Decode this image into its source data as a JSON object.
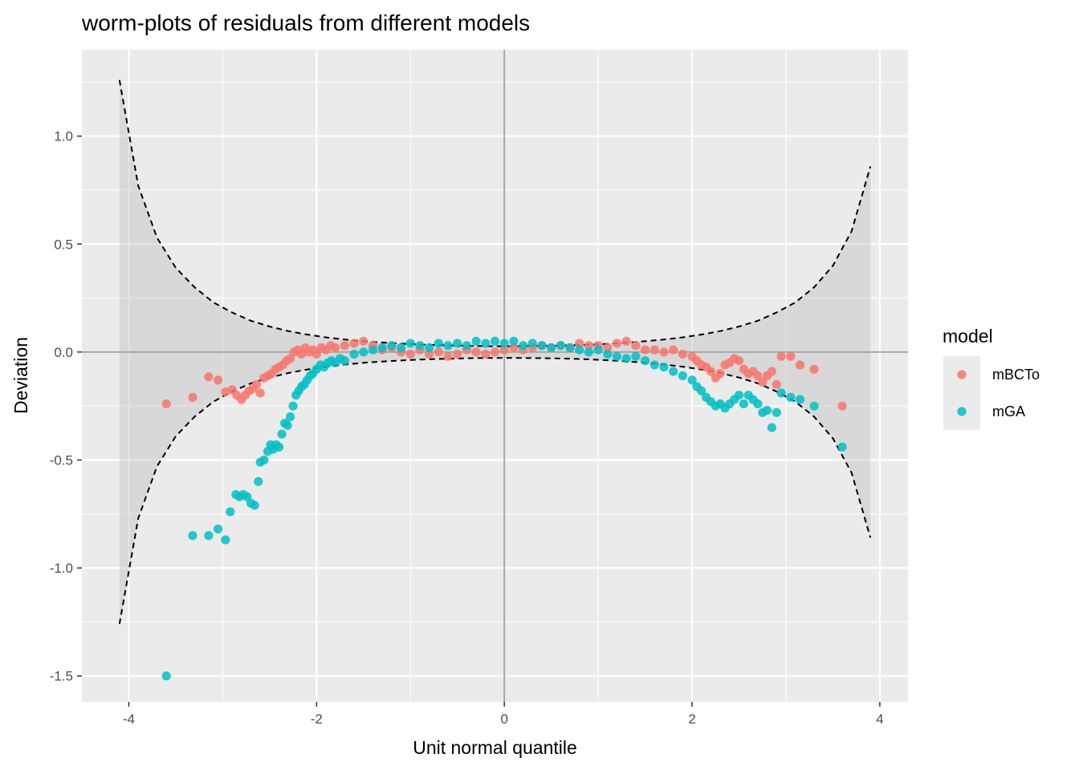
{
  "chart_data": {
    "type": "scatter",
    "title": "worm-plots of residuals from different models",
    "xlabel": "Unit normal quantile",
    "ylabel": "Deviation",
    "xlim": [
      -4.5,
      4.3
    ],
    "ylim": [
      -1.62,
      1.4
    ],
    "x_ticks": [
      -4,
      -2,
      0,
      2,
      4
    ],
    "x_tick_labels": [
      "-4",
      "-2",
      "0",
      "2",
      "4"
    ],
    "y_ticks": [
      -1.5,
      -1.0,
      -0.5,
      0.0,
      0.5,
      1.0
    ],
    "y_tick_labels": [
      "-1.5",
      "-1.0",
      "-0.5",
      "0.0",
      "0.5",
      "1.0"
    ],
    "grid": true,
    "legend": {
      "title": "model",
      "position": "right"
    },
    "reference_lines": {
      "x": 0,
      "y": 0
    },
    "confidence_band": {
      "x": [
        -4.1,
        -3.9,
        -3.7,
        -3.5,
        -3.3,
        -3.1,
        -2.9,
        -2.7,
        -2.5,
        -2.3,
        -2.1,
        -1.9,
        -1.7,
        -1.5,
        -1.3,
        -1.1,
        -0.9,
        -0.7,
        -0.5,
        -0.3,
        -0.1,
        0.1,
        0.3,
        0.5,
        0.7,
        0.9,
        1.1,
        1.3,
        1.5,
        1.7,
        1.9,
        2.1,
        2.3,
        2.5,
        2.7,
        2.9,
        3.1,
        3.3,
        3.5,
        3.7,
        3.9
      ],
      "upper": [
        1.26,
        0.77,
        0.53,
        0.39,
        0.3,
        0.23,
        0.183,
        0.145,
        0.118,
        0.097,
        0.081,
        0.068,
        0.058,
        0.05,
        0.044,
        0.039,
        0.035,
        0.032,
        0.03,
        0.028,
        0.027,
        0.027,
        0.028,
        0.029,
        0.031,
        0.034,
        0.038,
        0.043,
        0.05,
        0.058,
        0.068,
        0.081,
        0.097,
        0.118,
        0.145,
        0.183,
        0.23,
        0.3,
        0.4,
        0.56,
        0.86
      ],
      "lower": [
        -1.26,
        -0.77,
        -0.53,
        -0.39,
        -0.3,
        -0.23,
        -0.183,
        -0.145,
        -0.118,
        -0.097,
        -0.081,
        -0.068,
        -0.058,
        -0.05,
        -0.044,
        -0.039,
        -0.035,
        -0.032,
        -0.03,
        -0.028,
        -0.027,
        -0.027,
        -0.028,
        -0.029,
        -0.031,
        -0.034,
        -0.038,
        -0.043,
        -0.05,
        -0.058,
        -0.068,
        -0.081,
        -0.097,
        -0.118,
        -0.145,
        -0.183,
        -0.23,
        -0.3,
        -0.4,
        -0.56,
        -0.86
      ]
    },
    "series": [
      {
        "name": "mBCTo",
        "color": "#F8766D",
        "x": [
          -3.6,
          -3.32,
          -3.15,
          -3.05,
          -2.97,
          -2.9,
          -2.85,
          -2.8,
          -2.76,
          -2.72,
          -2.68,
          -2.64,
          -2.6,
          -2.56,
          -2.52,
          -2.48,
          -2.44,
          -2.4,
          -2.36,
          -2.32,
          -2.28,
          -2.24,
          -2.2,
          -2.16,
          -2.12,
          -2.08,
          -2.04,
          -2.0,
          -1.95,
          -1.9,
          -1.85,
          -1.8,
          -1.7,
          -1.6,
          -1.5,
          -1.4,
          -1.3,
          -1.2,
          -1.1,
          -1.0,
          -0.9,
          -0.8,
          -0.7,
          -0.6,
          -0.5,
          -0.4,
          -0.3,
          -0.2,
          -0.1,
          0.0,
          0.1,
          0.2,
          0.3,
          0.4,
          0.5,
          0.6,
          0.7,
          0.8,
          0.9,
          1.0,
          1.1,
          1.2,
          1.3,
          1.4,
          1.5,
          1.6,
          1.7,
          1.8,
          1.9,
          2.0,
          2.05,
          2.1,
          2.15,
          2.2,
          2.25,
          2.3,
          2.35,
          2.4,
          2.45,
          2.5,
          2.55,
          2.6,
          2.65,
          2.7,
          2.75,
          2.8,
          2.85,
          2.9,
          2.95,
          3.05,
          3.15,
          3.3,
          3.6
        ],
        "y": [
          -0.24,
          -0.21,
          -0.115,
          -0.13,
          -0.185,
          -0.175,
          -0.2,
          -0.22,
          -0.2,
          -0.18,
          -0.17,
          -0.15,
          -0.19,
          -0.12,
          -0.11,
          -0.1,
          -0.08,
          -0.07,
          -0.06,
          -0.04,
          -0.03,
          0.0,
          0.01,
          -0.01,
          0.02,
          0.0,
          0.01,
          -0.01,
          0.02,
          0.01,
          0.03,
          0.02,
          0.03,
          0.04,
          0.05,
          0.03,
          0.01,
          0.02,
          0.0,
          -0.01,
          0.01,
          -0.01,
          0.0,
          -0.02,
          -0.01,
          0.01,
          0.0,
          -0.01,
          0.0,
          0.01,
          0.02,
          0.01,
          0.02,
          0.03,
          0.02,
          0.03,
          0.02,
          0.04,
          0.03,
          0.03,
          0.02,
          0.04,
          0.05,
          0.03,
          0.01,
          0.01,
          0.0,
          0.01,
          -0.01,
          -0.02,
          -0.04,
          -0.06,
          -0.07,
          -0.09,
          -0.12,
          -0.1,
          -0.06,
          -0.05,
          -0.03,
          -0.04,
          -0.08,
          -0.1,
          -0.09,
          -0.11,
          -0.14,
          -0.11,
          -0.09,
          -0.15,
          -0.02,
          -0.02,
          -0.06,
          -0.08,
          -0.25
        ]
      },
      {
        "name": "mGA",
        "color": "#00BFC4",
        "x": [
          -3.6,
          -3.32,
          -3.15,
          -3.05,
          -2.97,
          -2.92,
          -2.86,
          -2.82,
          -2.78,
          -2.74,
          -2.7,
          -2.66,
          -2.62,
          -2.6,
          -2.56,
          -2.52,
          -2.49,
          -2.46,
          -2.43,
          -2.4,
          -2.37,
          -2.34,
          -2.31,
          -2.28,
          -2.25,
          -2.22,
          -2.19,
          -2.16,
          -2.13,
          -2.1,
          -2.07,
          -2.04,
          -2.0,
          -1.96,
          -1.92,
          -1.88,
          -1.84,
          -1.8,
          -1.75,
          -1.7,
          -1.6,
          -1.5,
          -1.4,
          -1.3,
          -1.2,
          -1.1,
          -1.0,
          -0.9,
          -0.8,
          -0.7,
          -0.6,
          -0.5,
          -0.4,
          -0.3,
          -0.2,
          -0.1,
          0.0,
          0.1,
          0.2,
          0.3,
          0.4,
          0.5,
          0.6,
          0.7,
          0.8,
          0.9,
          1.0,
          1.1,
          1.2,
          1.3,
          1.4,
          1.5,
          1.6,
          1.7,
          1.8,
          1.9,
          2.0,
          2.05,
          2.1,
          2.15,
          2.2,
          2.25,
          2.3,
          2.35,
          2.4,
          2.45,
          2.5,
          2.55,
          2.6,
          2.65,
          2.7,
          2.75,
          2.8,
          2.85,
          2.9,
          2.95,
          3.05,
          3.15,
          3.3,
          3.6
        ],
        "y": [
          -1.5,
          -0.85,
          -0.85,
          -0.82,
          -0.87,
          -0.74,
          -0.66,
          -0.67,
          -0.66,
          -0.67,
          -0.7,
          -0.71,
          -0.6,
          -0.51,
          -0.5,
          -0.46,
          -0.43,
          -0.45,
          -0.43,
          -0.44,
          -0.38,
          -0.33,
          -0.34,
          -0.3,
          -0.25,
          -0.2,
          -0.18,
          -0.16,
          -0.15,
          -0.13,
          -0.11,
          -0.1,
          -0.08,
          -0.06,
          -0.07,
          -0.05,
          -0.04,
          -0.05,
          -0.03,
          -0.04,
          -0.01,
          0.0,
          0.01,
          0.02,
          0.03,
          0.02,
          0.04,
          0.03,
          0.02,
          0.04,
          0.03,
          0.04,
          0.03,
          0.05,
          0.04,
          0.05,
          0.04,
          0.05,
          0.03,
          0.04,
          0.03,
          0.02,
          0.03,
          0.02,
          0.01,
          0.0,
          0.01,
          -0.01,
          -0.02,
          -0.03,
          -0.02,
          -0.04,
          -0.06,
          -0.07,
          -0.09,
          -0.11,
          -0.13,
          -0.16,
          -0.18,
          -0.21,
          -0.23,
          -0.25,
          -0.24,
          -0.26,
          -0.24,
          -0.22,
          -0.2,
          -0.24,
          -0.2,
          -0.22,
          -0.24,
          -0.28,
          -0.27,
          -0.35,
          -0.28,
          -0.19,
          -0.21,
          -0.22,
          -0.25,
          -0.44
        ]
      }
    ]
  }
}
